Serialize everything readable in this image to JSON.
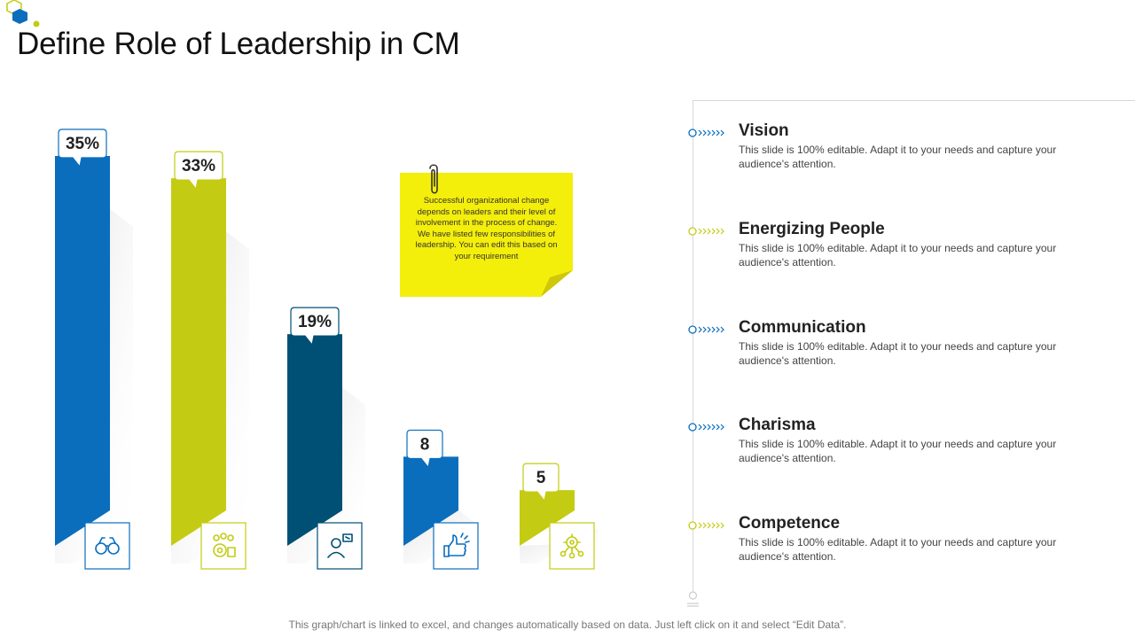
{
  "page": {
    "title": "Define Role of Leadership in CM",
    "footer": "This graph/chart is linked to excel, and changes automatically based on data. Just left click on it and select “Edit Data”."
  },
  "note": {
    "text": "Successful organizational change depends on leaders and their level of involvement in the process of change. We have listed few responsibilities of leadership. You can edit this based on your requirement"
  },
  "chart_data": {
    "type": "bar",
    "title": "",
    "xlabel": "",
    "ylabel": "",
    "ylim": [
      0,
      35
    ],
    "categories": [
      "Vision",
      "Energizing People",
      "Communication",
      "Charisma",
      "Competence"
    ],
    "values": [
      35,
      33,
      19,
      8,
      5
    ],
    "labels": [
      "35%",
      "33%",
      "19%",
      "8",
      "5"
    ],
    "colors": [
      "#0a6ebd",
      "#c3cc12",
      "#004f74",
      "#0a6ebd",
      "#c3cc12"
    ],
    "icons": [
      "binoculars-icon",
      "team-gear-icon",
      "presenter-icon",
      "thumbs-up-icon",
      "network-gear-icon"
    ]
  },
  "timeline": {
    "items": [
      {
        "heading": "Vision",
        "desc": "This slide is 100% editable. Adapt it to your needs and capture your audience's attention.",
        "color": "#0a6ebd"
      },
      {
        "heading": "Energizing People",
        "desc": "This slide is 100% editable. Adapt it to your needs and capture your audience's attention.",
        "color": "#c3cc12"
      },
      {
        "heading": "Communication",
        "desc": "This slide is 100% editable. Adapt it to your needs and capture your audience's attention.",
        "color": "#0a6ebd"
      },
      {
        "heading": "Charisma",
        "desc": "This slide is 100% editable. Adapt it to your needs and capture your audience's attention.",
        "color": "#0a6ebd"
      },
      {
        "heading": "Competence",
        "desc": "This slide is 100% editable. Adapt it to your needs and capture your audience's attention.",
        "color": "#c3cc12"
      }
    ]
  },
  "colors": {
    "blue": "#0a6ebd",
    "lime": "#c3cc12",
    "navy": "#004f74",
    "note": "#f4ee0b"
  }
}
